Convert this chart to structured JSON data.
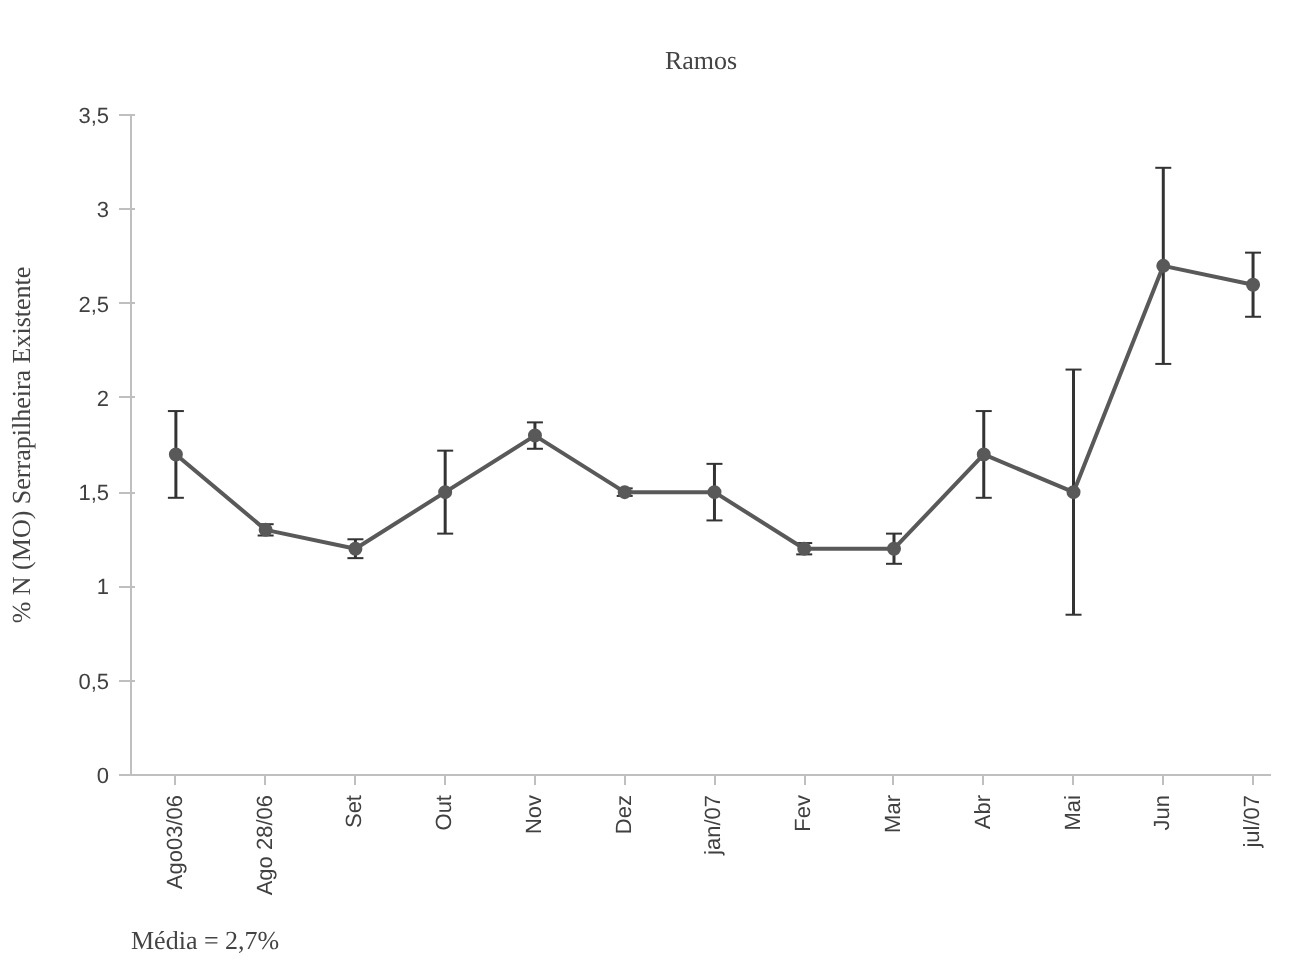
{
  "chart_data": {
    "type": "line",
    "title": "Ramos",
    "ylabel": "% N (MO) Serrapilheira Existente",
    "categories": [
      "Ago03/06",
      "Ago 28/06",
      "Set",
      "Out",
      "Nov",
      "Dez",
      "jan/07",
      "Fev",
      "Mar",
      "Abr",
      "Mai",
      "Jun",
      "jul/07"
    ],
    "series": [
      {
        "color": "#595959",
        "values": [
          1.7,
          1.3,
          1.2,
          1.5,
          1.8,
          1.5,
          1.5,
          1.2,
          1.2,
          1.7,
          1.5,
          2.7,
          2.6
        ],
        "errors": [
          0.23,
          0.03,
          0.05,
          0.22,
          0.07,
          0.02,
          0.15,
          0.03,
          0.08,
          0.23,
          0.65,
          0.52,
          0.17
        ]
      }
    ],
    "ylim": [
      0,
      3.5
    ],
    "yticks": [
      0,
      {
        "value": 0.5,
        "label": "0,5"
      },
      1,
      {
        "value": 1.5,
        "label": "1,5"
      },
      2,
      {
        "value": 2.5,
        "label": "2,5"
      },
      3,
      {
        "value": 3.5,
        "label": "3,5"
      }
    ],
    "grid": false,
    "marker": "circle",
    "line_style": "solid",
    "annotations": [
      "Média = 2,7%"
    ]
  }
}
